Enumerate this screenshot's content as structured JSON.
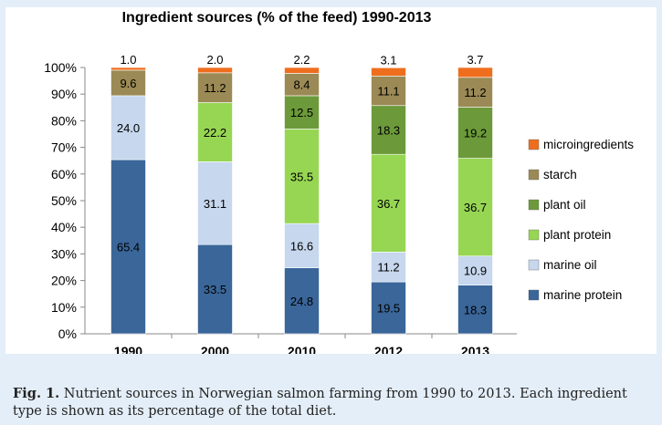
{
  "chart_data": {
    "type": "bar",
    "stacked": true,
    "title": "Ingredient sources (% of the feed) 1990-2013",
    "xlabel": "",
    "ylabel": "",
    "ylim": [
      0,
      100
    ],
    "y_ticks": [
      "0%",
      "10%",
      "20%",
      "30%",
      "40%",
      "50%",
      "60%",
      "70%",
      "80%",
      "90%",
      "100%"
    ],
    "categories": [
      "1990",
      "2000",
      "2010",
      "2012",
      "2013"
    ],
    "legend_position": "right",
    "grid": false,
    "series": [
      {
        "name": "marine protein",
        "color": "#3a6699",
        "values": [
          65.4,
          33.5,
          24.8,
          19.5,
          18.3
        ]
      },
      {
        "name": "marine oil",
        "color": "#c6d7ee",
        "values": [
          24.0,
          31.1,
          16.6,
          11.2,
          10.9
        ]
      },
      {
        "name": "plant protein",
        "color": "#97d653",
        "values": [
          0,
          22.2,
          35.5,
          36.7,
          36.7
        ]
      },
      {
        "name": "plant oil",
        "color": "#6c9a3a",
        "values": [
          0,
          0,
          12.5,
          18.3,
          19.2
        ]
      },
      {
        "name": "starch",
        "color": "#9b8a55",
        "values": [
          9.6,
          11.2,
          8.4,
          11.1,
          11.2
        ]
      },
      {
        "name": "microingredients",
        "color": "#ee6e1e",
        "values": [
          1.0,
          2.0,
          2.2,
          3.1,
          3.7
        ]
      }
    ],
    "data_labels": {
      "marine protein": [
        "65.4",
        "33.5",
        "24.8",
        "19.5",
        "18.3"
      ],
      "marine oil": [
        "24.0",
        "31.1",
        "16.6",
        "11.2",
        "10.9"
      ],
      "plant protein": [
        "",
        "22.2",
        "35.5",
        "36.7",
        "36.7"
      ],
      "plant oil": [
        "",
        "",
        "12.5",
        "18.3",
        "19.2"
      ],
      "starch": [
        "9.6",
        "11.2",
        "8.4",
        "11.1",
        "11.2"
      ],
      "microingredients": [
        "1.0",
        "2.0",
        "2.2",
        "3.1",
        "3.7"
      ]
    },
    "legend_order": [
      "microingredients",
      "starch",
      "plant oil",
      "plant protein",
      "marine oil",
      "marine protein"
    ]
  },
  "caption": {
    "label": "Fig. 1.",
    "text": " Nutrient sources in Norwegian salmon farming from 1990 to 2013. Each ingredient type is shown as its percentage of the total diet."
  }
}
